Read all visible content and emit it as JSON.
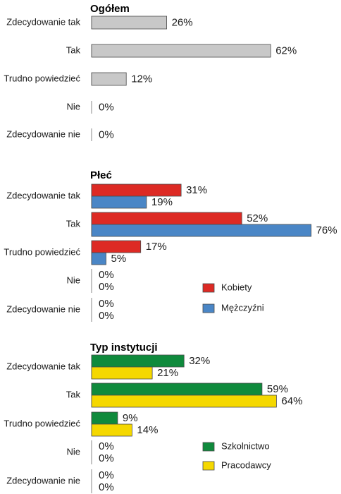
{
  "chart_data": [
    {
      "type": "bar",
      "orientation": "horizontal",
      "title": "Ogółem",
      "categories": [
        "Zdecydowanie tak",
        "Tak",
        "Trudno powiedzieć",
        "Nie",
        "Zdecydowanie nie"
      ],
      "series": [
        {
          "values": [
            26,
            62,
            12,
            0,
            0
          ],
          "color": "#c8c8c8"
        }
      ],
      "value_format": "%",
      "legend": null
    },
    {
      "type": "bar",
      "orientation": "horizontal",
      "title": "Płeć",
      "categories": [
        "Zdecydowanie tak",
        "Tak",
        "Trudno powiedzieć",
        "Nie",
        "Zdecydowanie nie"
      ],
      "series": [
        {
          "name": "Kobiety",
          "values": [
            31,
            52,
            17,
            0,
            0
          ],
          "color": "#dd2a24"
        },
        {
          "name": "Mężczyźni",
          "values": [
            19,
            76,
            5,
            0,
            0
          ],
          "color": "#4a86c6"
        }
      ],
      "value_format": "%",
      "legend": "right"
    },
    {
      "type": "bar",
      "orientation": "horizontal",
      "title": "Typ instytucji",
      "categories": [
        "Zdecydowanie tak",
        "Tak",
        "Trudno powiedzieć",
        "Nie",
        "Zdecydowanie nie"
      ],
      "series": [
        {
          "name": "Szkolnictwo",
          "values": [
            32,
            59,
            9,
            0,
            0
          ],
          "color": "#0f8a3c"
        },
        {
          "name": "Pracodawcy",
          "values": [
            21,
            64,
            14,
            0,
            0
          ],
          "color": "#f5d800"
        }
      ],
      "value_format": "%",
      "legend": "right"
    }
  ]
}
